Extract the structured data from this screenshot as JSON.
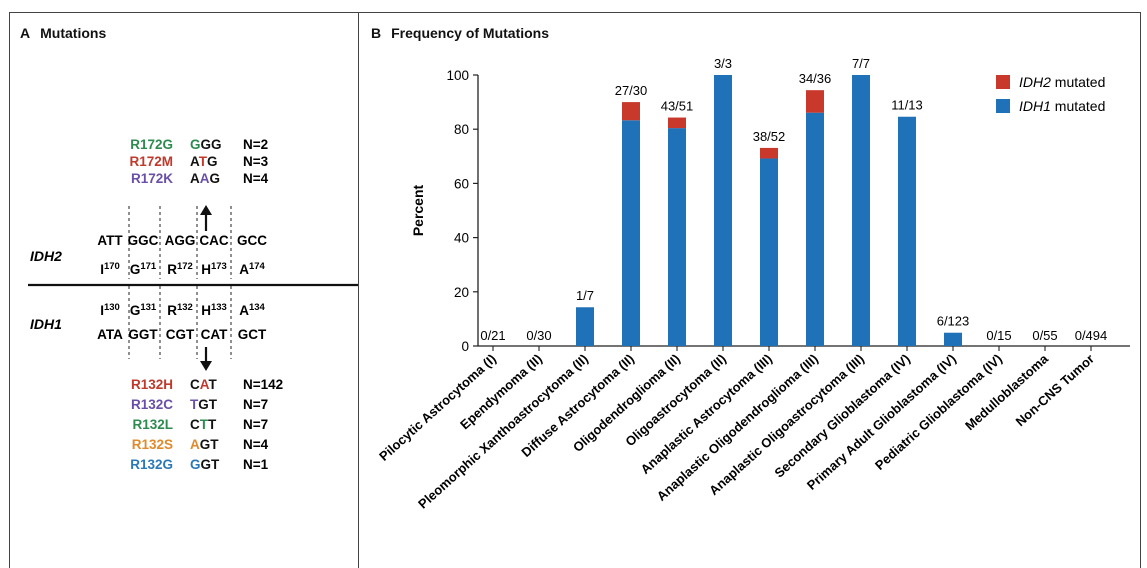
{
  "panel_a": {
    "letter": "A",
    "title": "Mutations",
    "colors": {
      "green": "#2e8b4f",
      "red": "#c0392b",
      "purple": "#6a4fa8",
      "orange": "#e08a2c",
      "blue": "#2a78b8",
      "black": "#111111"
    },
    "idh2": {
      "gene": "IDH2",
      "codons": [
        "ATT",
        "GGC",
        "AGG",
        "CAC",
        "GCC"
      ],
      "residues": [
        {
          "aa": "I",
          "num": "170"
        },
        {
          "aa": "G",
          "num": "171"
        },
        {
          "aa": "R",
          "num": "172"
        },
        {
          "aa": "H",
          "num": "173"
        },
        {
          "aa": "A",
          "num": "174"
        }
      ],
      "mutations": [
        {
          "name": "R172G",
          "color": "green",
          "codon_pre": "",
          "codon_mut": "G",
          "codon_post": "GG",
          "n": "N=2"
        },
        {
          "name": "R172M",
          "color": "red",
          "codon_pre": "A",
          "codon_mut": "T",
          "codon_post": "G",
          "n": "N=3"
        },
        {
          "name": "R172K",
          "color": "purple",
          "codon_pre": "A",
          "codon_mut": "A",
          "codon_post": "G",
          "n": "N=4"
        }
      ]
    },
    "idh1": {
      "gene": "IDH1",
      "codons": [
        "ATA",
        "GGT",
        "CGT",
        "CAT",
        "GCT"
      ],
      "residues": [
        {
          "aa": "I",
          "num": "130"
        },
        {
          "aa": "G",
          "num": "131"
        },
        {
          "aa": "R",
          "num": "132"
        },
        {
          "aa": "H",
          "num": "133"
        },
        {
          "aa": "A",
          "num": "134"
        }
      ],
      "mutations": [
        {
          "name": "R132H",
          "color": "red",
          "codon_pre": "C",
          "codon_mut": "A",
          "codon_post": "T",
          "n": "N=142"
        },
        {
          "name": "R132C",
          "color": "purple",
          "codon_pre": "",
          "codon_mut": "T",
          "codon_post": "GT",
          "n": "N=7"
        },
        {
          "name": "R132L",
          "color": "green",
          "codon_pre": "C",
          "codon_mut": "T",
          "codon_post": "T",
          "n": "N=7"
        },
        {
          "name": "R132S",
          "color": "orange",
          "codon_pre": "",
          "codon_mut": "A",
          "codon_post": "GT",
          "n": "N=4"
        },
        {
          "name": "R132G",
          "color": "blue",
          "codon_pre": "",
          "codon_mut": "G",
          "codon_post": "GT",
          "n": "N=1"
        }
      ]
    }
  },
  "panel_b": {
    "letter": "B",
    "title": "Frequency of Mutations"
  },
  "chart_data": {
    "type": "bar",
    "stacked": true,
    "ylabel": "Percent",
    "xlabel": "",
    "ylim": [
      0,
      100
    ],
    "yticks": [
      0,
      20,
      40,
      60,
      80,
      100
    ],
    "grid": false,
    "legend_position": "top-right",
    "categories": [
      "Pilocytic Astrocytoma (I)",
      "Ependymoma (II)",
      "Pleomorphic Xanthoastrocytoma (II)",
      "Diffuse Astrocytoma (II)",
      "Oligodendroglioma (II)",
      "Oligoastrocytoma (II)",
      "Anaplastic Astrocytoma (III)",
      "Anaplastic Oligodendroglioma (III)",
      "Anaplastic Oligoastrocytoma (III)",
      "Secondary Glioblastoma (IV)",
      "Primary Adult Glioblastoma (IV)",
      "Pediatric Glioblastoma (IV)",
      "Medulloblastoma",
      "Non-CNS Tumor"
    ],
    "bar_labels": [
      "0/21",
      "0/30",
      "1/7",
      "27/30",
      "43/51",
      "3/3",
      "38/52",
      "34/36",
      "7/7",
      "11/13",
      "6/123",
      "0/15",
      "0/55",
      "0/494"
    ],
    "series": [
      {
        "name": "IDH1 mutated",
        "color": "#1f72b8",
        "values": [
          0,
          0,
          14.3,
          83.3,
          80.4,
          100,
          69.2,
          86.1,
          100,
          84.6,
          4.9,
          0,
          0,
          0
        ]
      },
      {
        "name": "IDH2 mutated",
        "color": "#c8382b",
        "values": [
          0,
          0,
          0,
          6.7,
          3.9,
          0,
          3.9,
          8.3,
          0,
          0,
          0,
          0,
          0,
          0
        ]
      }
    ],
    "legend": [
      {
        "italic": "IDH2",
        "rest": " mutated",
        "color": "#c8382b"
      },
      {
        "italic": "IDH1",
        "rest": " mutated",
        "color": "#1f72b8"
      }
    ]
  }
}
